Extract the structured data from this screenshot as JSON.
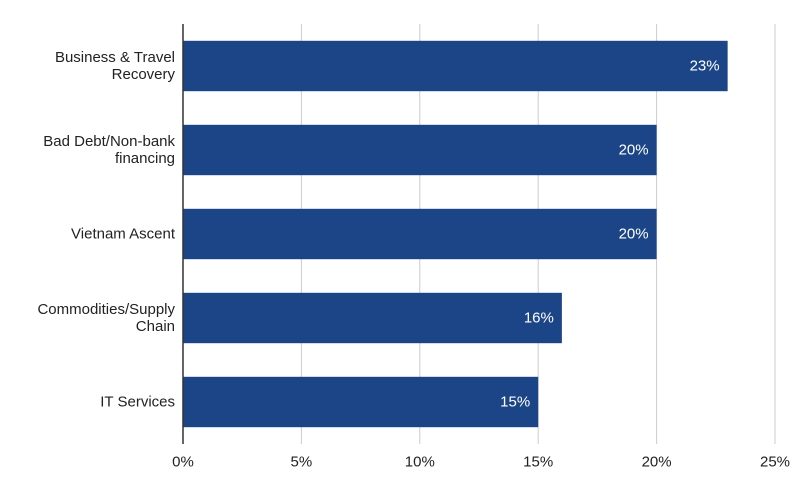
{
  "chart_data": {
    "type": "bar",
    "orientation": "horizontal",
    "categories": [
      [
        "Business & Travel",
        "Recovery"
      ],
      [
        "Bad Debt/Non-bank",
        "financing"
      ],
      [
        "Vietnam Ascent"
      ],
      [
        "Commodities/Supply",
        "Chain"
      ],
      [
        "IT Services"
      ]
    ],
    "values": [
      23,
      20,
      20,
      16,
      15
    ],
    "data_labels": [
      "23%",
      "20%",
      "20%",
      "16%",
      "15%"
    ],
    "xlim": [
      0,
      25
    ],
    "xticks": [
      0,
      5,
      10,
      15,
      20,
      25
    ],
    "xtick_labels": [
      "0%",
      "5%",
      "10%",
      "15%",
      "20%",
      "25%"
    ],
    "grid": true,
    "legend": "none",
    "title": "",
    "xlabel": "",
    "ylabel": "",
    "colors": {
      "bar": "#1c4587",
      "grid": "#cccccc",
      "axis": "#333333",
      "label_text": "#222222",
      "bar_label_text": "#ffffff"
    }
  }
}
